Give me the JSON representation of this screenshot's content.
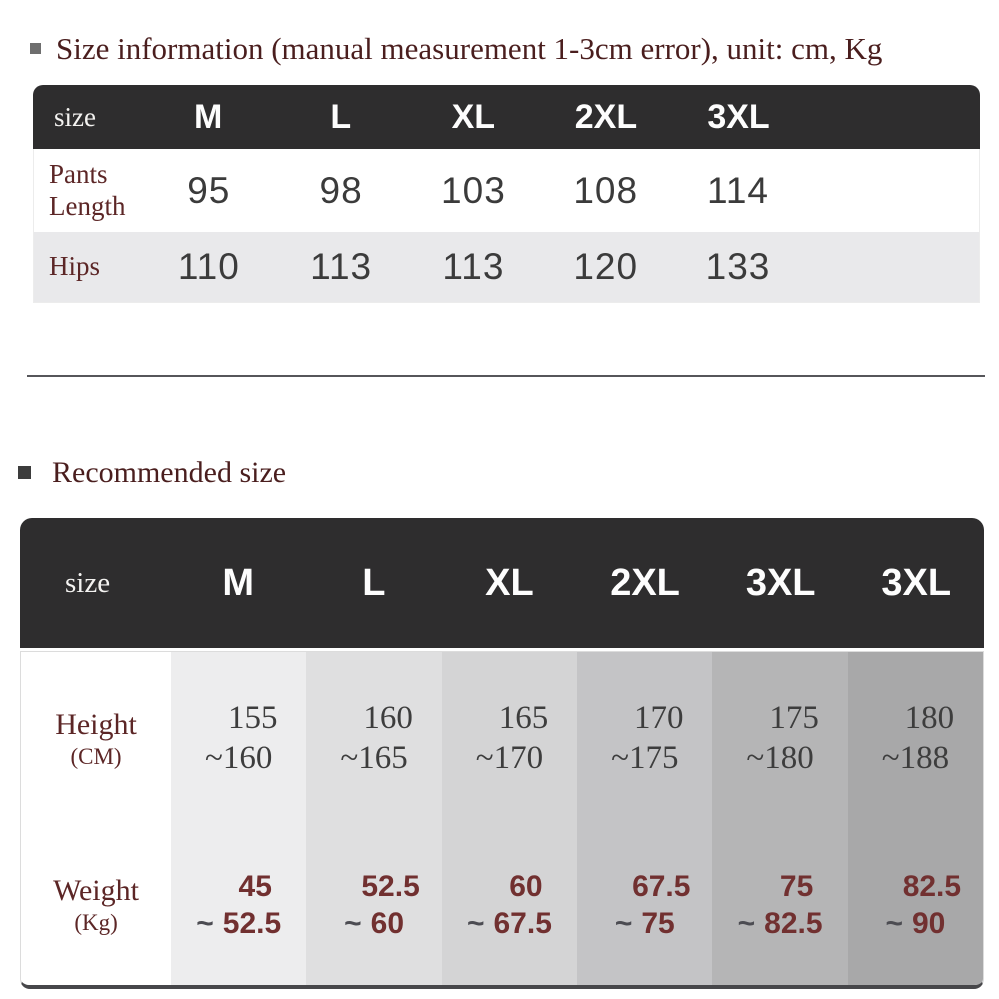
{
  "size_info": {
    "title": "Size information (manual measurement 1-3cm error), unit: cm, Kg",
    "table": {
      "size_label": "size",
      "sizes": [
        "M",
        "L",
        "XL",
        "2XL",
        "3XL"
      ],
      "rows": [
        {
          "label": "Pants Length",
          "values": [
            "95",
            "98",
            "103",
            "108",
            "114"
          ]
        },
        {
          "label": "Hips",
          "values": [
            "110",
            "113",
            "113",
            "120",
            "133"
          ]
        }
      ]
    }
  },
  "recommended": {
    "title": "Recommended size",
    "table": {
      "size_label": "size",
      "sizes": [
        "M",
        "L",
        "XL",
        "2XL",
        "3XL",
        "3XL"
      ],
      "tilde": "~",
      "column_shades": [
        "#ededee",
        "#dfdfe0",
        "#d4d4d5",
        "#c4c4c6",
        "#b5b5b6",
        "#a8a8a9"
      ],
      "rows": [
        {
          "label": "Height",
          "unit": "(CM)",
          "style": "height",
          "values": [
            {
              "from": "155",
              "to": "160"
            },
            {
              "from": "160",
              "to": "165"
            },
            {
              "from": "165",
              "to": "170"
            },
            {
              "from": "170",
              "to": "175"
            },
            {
              "from": "175",
              "to": "180"
            },
            {
              "from": "180",
              "to": "188"
            }
          ]
        },
        {
          "label": "Weight",
          "unit": "(Kg)",
          "style": "weight",
          "values": [
            {
              "from": "45",
              "to": "52.5"
            },
            {
              "from": "52.5",
              "to": "60"
            },
            {
              "from": "60",
              "to": "67.5"
            },
            {
              "from": "67.5",
              "to": "75"
            },
            {
              "from": "75",
              "to": "82.5"
            },
            {
              "from": "82.5",
              "to": "90"
            }
          ]
        }
      ]
    }
  },
  "colors": {
    "header_bg": "#2e2d2e",
    "header_text": "#f4f3f1",
    "title_text": "#4a1e1e",
    "label_text": "#5c2626",
    "value_text": "#3b3b3b",
    "weight_value_text": "#713030",
    "tilde_text": "#4c4c52",
    "alt_row_bg": "#e9e9eb",
    "divider": "#56565a"
  }
}
